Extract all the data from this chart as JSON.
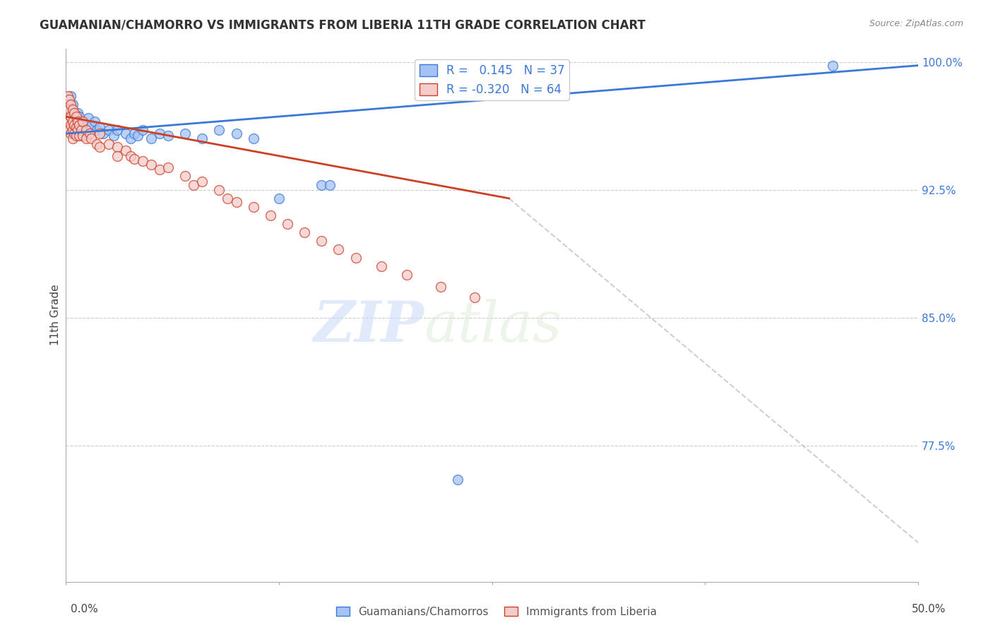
{
  "title": "GUAMANIAN/CHAMORRO VS IMMIGRANTS FROM LIBERIA 11TH GRADE CORRELATION CHART",
  "source": "Source: ZipAtlas.com",
  "ylabel": "11th Grade",
  "xlim": [
    0.0,
    0.5
  ],
  "ylim": [
    0.695,
    1.008
  ],
  "color_blue": "#a4c2f4",
  "color_pink": "#f4cccc",
  "color_blue_line": "#3c78d8",
  "color_pink_line": "#cc4125",
  "color_dashed": "#cccccc",
  "watermark_zip": "ZIP",
  "watermark_atlas": "atlas",
  "blue_scatter": [
    [
      0.001,
      0.968
    ],
    [
      0.002,
      0.972
    ],
    [
      0.003,
      0.98
    ],
    [
      0.004,
      0.975
    ],
    [
      0.005,
      0.962
    ],
    [
      0.006,
      0.965
    ],
    [
      0.007,
      0.97
    ],
    [
      0.008,
      0.968
    ],
    [
      0.01,
      0.963
    ],
    [
      0.012,
      0.96
    ],
    [
      0.013,
      0.967
    ],
    [
      0.015,
      0.963
    ],
    [
      0.017,
      0.965
    ],
    [
      0.018,
      0.96
    ],
    [
      0.02,
      0.962
    ],
    [
      0.022,
      0.958
    ],
    [
      0.025,
      0.96
    ],
    [
      0.028,
      0.957
    ],
    [
      0.03,
      0.96
    ],
    [
      0.035,
      0.958
    ],
    [
      0.038,
      0.955
    ],
    [
      0.04,
      0.958
    ],
    [
      0.042,
      0.957
    ],
    [
      0.045,
      0.96
    ],
    [
      0.05,
      0.955
    ],
    [
      0.055,
      0.958
    ],
    [
      0.06,
      0.957
    ],
    [
      0.07,
      0.958
    ],
    [
      0.08,
      0.955
    ],
    [
      0.09,
      0.96
    ],
    [
      0.1,
      0.958
    ],
    [
      0.11,
      0.955
    ],
    [
      0.125,
      0.92
    ],
    [
      0.15,
      0.928
    ],
    [
      0.155,
      0.928
    ],
    [
      0.23,
      0.755
    ],
    [
      0.45,
      0.998
    ]
  ],
  "pink_scatter": [
    [
      0.001,
      0.98
    ],
    [
      0.001,
      0.975
    ],
    [
      0.001,
      0.968
    ],
    [
      0.001,
      0.965
    ],
    [
      0.002,
      0.978
    ],
    [
      0.002,
      0.972
    ],
    [
      0.002,
      0.965
    ],
    [
      0.002,
      0.96
    ],
    [
      0.003,
      0.975
    ],
    [
      0.003,
      0.968
    ],
    [
      0.003,
      0.963
    ],
    [
      0.003,
      0.958
    ],
    [
      0.004,
      0.972
    ],
    [
      0.004,
      0.965
    ],
    [
      0.004,
      0.96
    ],
    [
      0.004,
      0.955
    ],
    [
      0.005,
      0.97
    ],
    [
      0.005,
      0.963
    ],
    [
      0.005,
      0.958
    ],
    [
      0.006,
      0.968
    ],
    [
      0.006,
      0.962
    ],
    [
      0.006,
      0.957
    ],
    [
      0.007,
      0.965
    ],
    [
      0.007,
      0.96
    ],
    [
      0.008,
      0.963
    ],
    [
      0.008,
      0.957
    ],
    [
      0.009,
      0.96
    ],
    [
      0.01,
      0.965
    ],
    [
      0.01,
      0.957
    ],
    [
      0.012,
      0.96
    ],
    [
      0.012,
      0.955
    ],
    [
      0.014,
      0.958
    ],
    [
      0.015,
      0.955
    ],
    [
      0.018,
      0.952
    ],
    [
      0.02,
      0.958
    ],
    [
      0.02,
      0.95
    ],
    [
      0.025,
      0.952
    ],
    [
      0.03,
      0.95
    ],
    [
      0.03,
      0.945
    ],
    [
      0.035,
      0.948
    ],
    [
      0.038,
      0.945
    ],
    [
      0.04,
      0.943
    ],
    [
      0.045,
      0.942
    ],
    [
      0.05,
      0.94
    ],
    [
      0.055,
      0.937
    ],
    [
      0.06,
      0.938
    ],
    [
      0.07,
      0.933
    ],
    [
      0.075,
      0.928
    ],
    [
      0.08,
      0.93
    ],
    [
      0.09,
      0.925
    ],
    [
      0.095,
      0.92
    ],
    [
      0.1,
      0.918
    ],
    [
      0.11,
      0.915
    ],
    [
      0.12,
      0.91
    ],
    [
      0.13,
      0.905
    ],
    [
      0.14,
      0.9
    ],
    [
      0.15,
      0.895
    ],
    [
      0.16,
      0.89
    ],
    [
      0.17,
      0.885
    ],
    [
      0.185,
      0.88
    ],
    [
      0.2,
      0.875
    ],
    [
      0.22,
      0.868
    ],
    [
      0.24,
      0.862
    ]
  ],
  "blue_line": [
    [
      0.0,
      0.958
    ],
    [
      0.5,
      0.998
    ]
  ],
  "pink_line_solid": [
    [
      0.0,
      0.968
    ],
    [
      0.26,
      0.92
    ]
  ],
  "pink_line_dashed": [
    [
      0.26,
      0.92
    ],
    [
      0.5,
      0.718
    ]
  ]
}
